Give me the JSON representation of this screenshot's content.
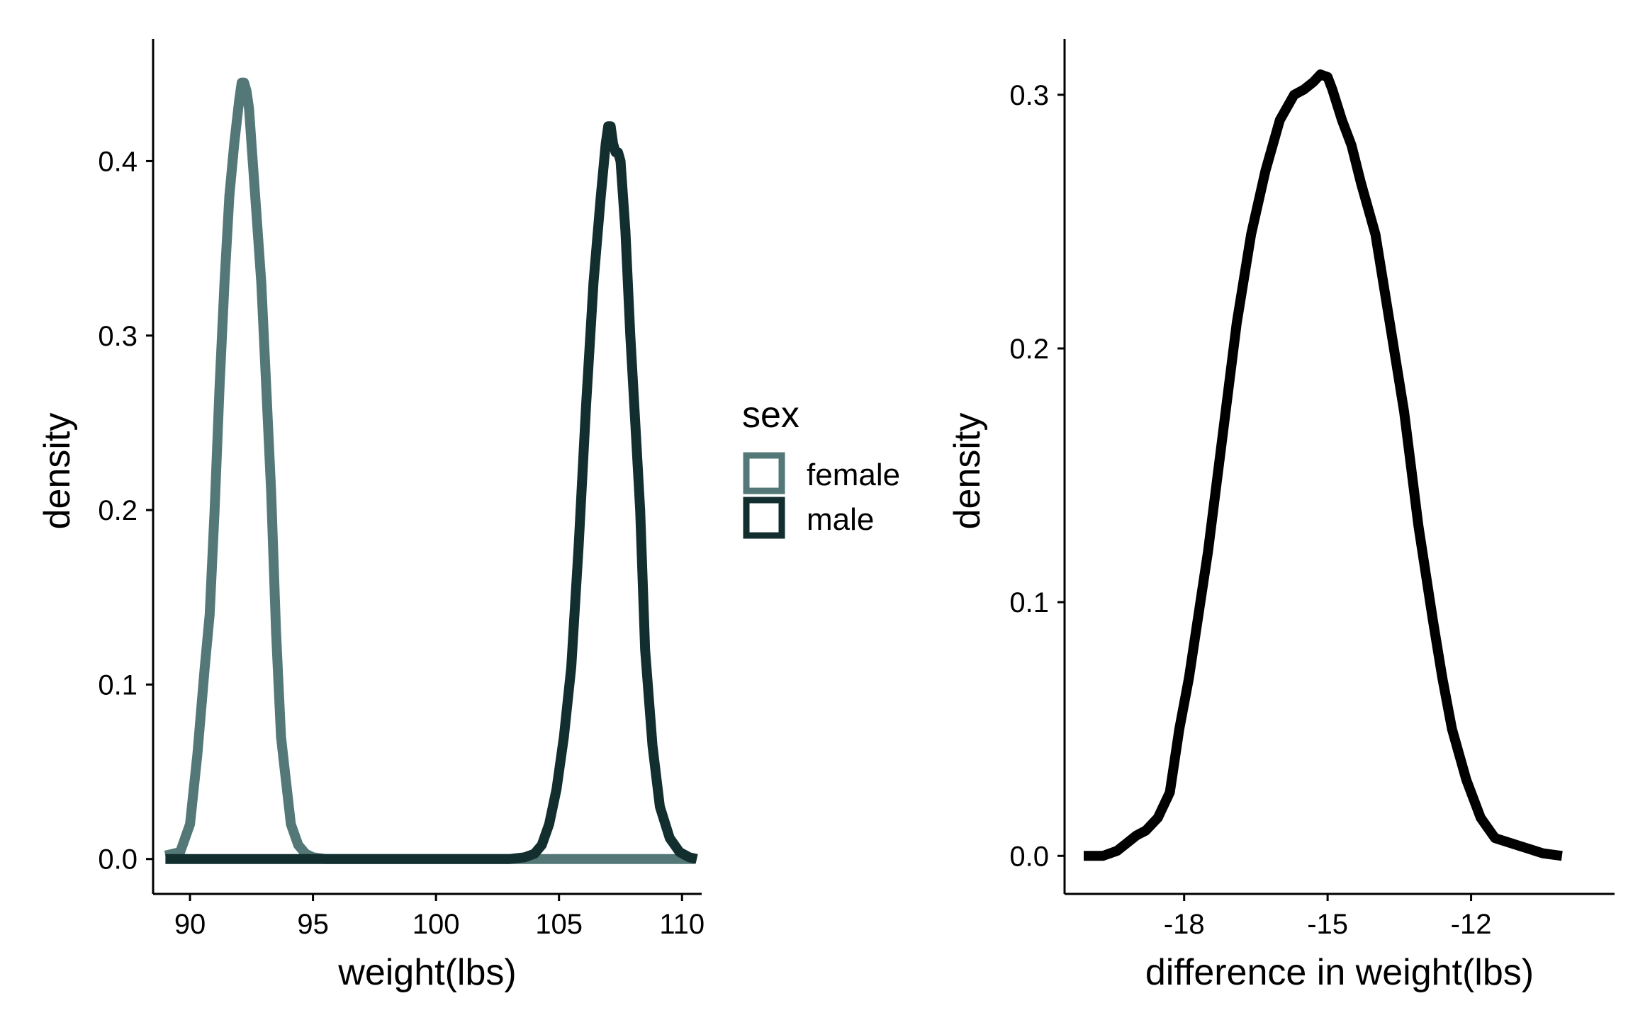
{
  "chart_data": [
    {
      "type": "line",
      "subtype": "density",
      "title": "",
      "xlabel": "weight(lbs)",
      "ylabel": "density",
      "xlim": [
        88.5,
        110.8
      ],
      "ylim": [
        -0.02,
        0.47
      ],
      "x_ticks": [
        90,
        95,
        100,
        105,
        110
      ],
      "x_tick_labels": [
        "90",
        "95",
        "100",
        "105",
        "110"
      ],
      "y_ticks": [
        0.0,
        0.1,
        0.2,
        0.3,
        0.4
      ],
      "y_tick_labels": [
        "0.0",
        "0.1",
        "0.2",
        "0.3",
        "0.4"
      ],
      "grid": false,
      "legend": {
        "title": "sex",
        "placement": "right",
        "entries": [
          {
            "label": "female",
            "color": "#547877"
          },
          {
            "label": "male",
            "color": "#122e2e"
          }
        ]
      },
      "series": [
        {
          "name": "female",
          "color": "#547877",
          "x": [
            89.0,
            89.6,
            90.0,
            90.3,
            90.6,
            90.8,
            91.0,
            91.2,
            91.4,
            91.6,
            91.8,
            92.0,
            92.1,
            92.2,
            92.3,
            92.4,
            92.5,
            92.7,
            92.9,
            93.1,
            93.3,
            93.5,
            93.7,
            93.9,
            94.1,
            94.4,
            94.7,
            95.0,
            95.5,
            97.0,
            100.0,
            103.0,
            104.0,
            104.5,
            105.0,
            106.0,
            108.0,
            110.5
          ],
          "y": [
            0.002,
            0.004,
            0.02,
            0.06,
            0.11,
            0.14,
            0.2,
            0.27,
            0.33,
            0.38,
            0.41,
            0.435,
            0.445,
            0.445,
            0.44,
            0.43,
            0.41,
            0.37,
            0.33,
            0.27,
            0.21,
            0.13,
            0.07,
            0.045,
            0.02,
            0.008,
            0.003,
            0.001,
            0.0,
            0.0,
            0.0,
            0.0,
            0.0,
            0.0,
            0.0,
            0.0,
            0.0,
            0.0
          ]
        },
        {
          "name": "male",
          "color": "#122e2e",
          "x": [
            89.0,
            92.0,
            96.0,
            100.0,
            103.0,
            103.6,
            104.0,
            104.3,
            104.6,
            104.9,
            105.2,
            105.5,
            105.8,
            106.1,
            106.4,
            106.7,
            106.9,
            107.0,
            107.1,
            107.2,
            107.3,
            107.4,
            107.5,
            107.7,
            107.9,
            108.1,
            108.3,
            108.5,
            108.8,
            109.1,
            109.5,
            109.9,
            110.3,
            110.6
          ],
          "y": [
            0.0,
            0.0,
            0.0,
            0.0,
            0.0,
            0.001,
            0.003,
            0.008,
            0.02,
            0.04,
            0.07,
            0.11,
            0.18,
            0.26,
            0.33,
            0.38,
            0.41,
            0.42,
            0.42,
            0.41,
            0.405,
            0.405,
            0.4,
            0.36,
            0.3,
            0.25,
            0.2,
            0.12,
            0.065,
            0.03,
            0.012,
            0.004,
            0.001,
            0.0
          ]
        }
      ]
    },
    {
      "type": "line",
      "subtype": "density",
      "title": "",
      "xlabel": "difference in weight(lbs)",
      "ylabel": "density",
      "xlim": [
        -20.5,
        -9.0
      ],
      "ylim": [
        -0.015,
        0.322
      ],
      "x_ticks": [
        -18,
        -15,
        -12
      ],
      "x_tick_labels": [
        "-18",
        "-15",
        "-12"
      ],
      "y_ticks": [
        0.0,
        0.1,
        0.2,
        0.3
      ],
      "y_tick_labels": [
        "0.0",
        "0.1",
        "0.2",
        "0.3"
      ],
      "grid": false,
      "series": [
        {
          "color": "#000000",
          "x": [
            -20.1,
            -19.7,
            -19.4,
            -19.2,
            -19.0,
            -18.8,
            -18.55,
            -18.3,
            -18.1,
            -17.9,
            -17.7,
            -17.5,
            -17.2,
            -16.9,
            -16.6,
            -16.3,
            -16.0,
            -15.7,
            -15.5,
            -15.3,
            -15.15,
            -15.0,
            -14.9,
            -14.7,
            -14.5,
            -14.3,
            -14.0,
            -13.7,
            -13.4,
            -13.1,
            -12.8,
            -12.6,
            -12.4,
            -12.1,
            -11.8,
            -11.5,
            -11.0,
            -10.5,
            -10.1
          ],
          "y": [
            0.0,
            0.0,
            0.002,
            0.005,
            0.008,
            0.01,
            0.015,
            0.025,
            0.05,
            0.07,
            0.095,
            0.12,
            0.165,
            0.21,
            0.245,
            0.27,
            0.29,
            0.3,
            0.302,
            0.305,
            0.308,
            0.307,
            0.302,
            0.29,
            0.28,
            0.265,
            0.245,
            0.21,
            0.175,
            0.13,
            0.093,
            0.07,
            0.05,
            0.03,
            0.015,
            0.007,
            0.004,
            0.001,
            0.0
          ]
        }
      ]
    }
  ]
}
